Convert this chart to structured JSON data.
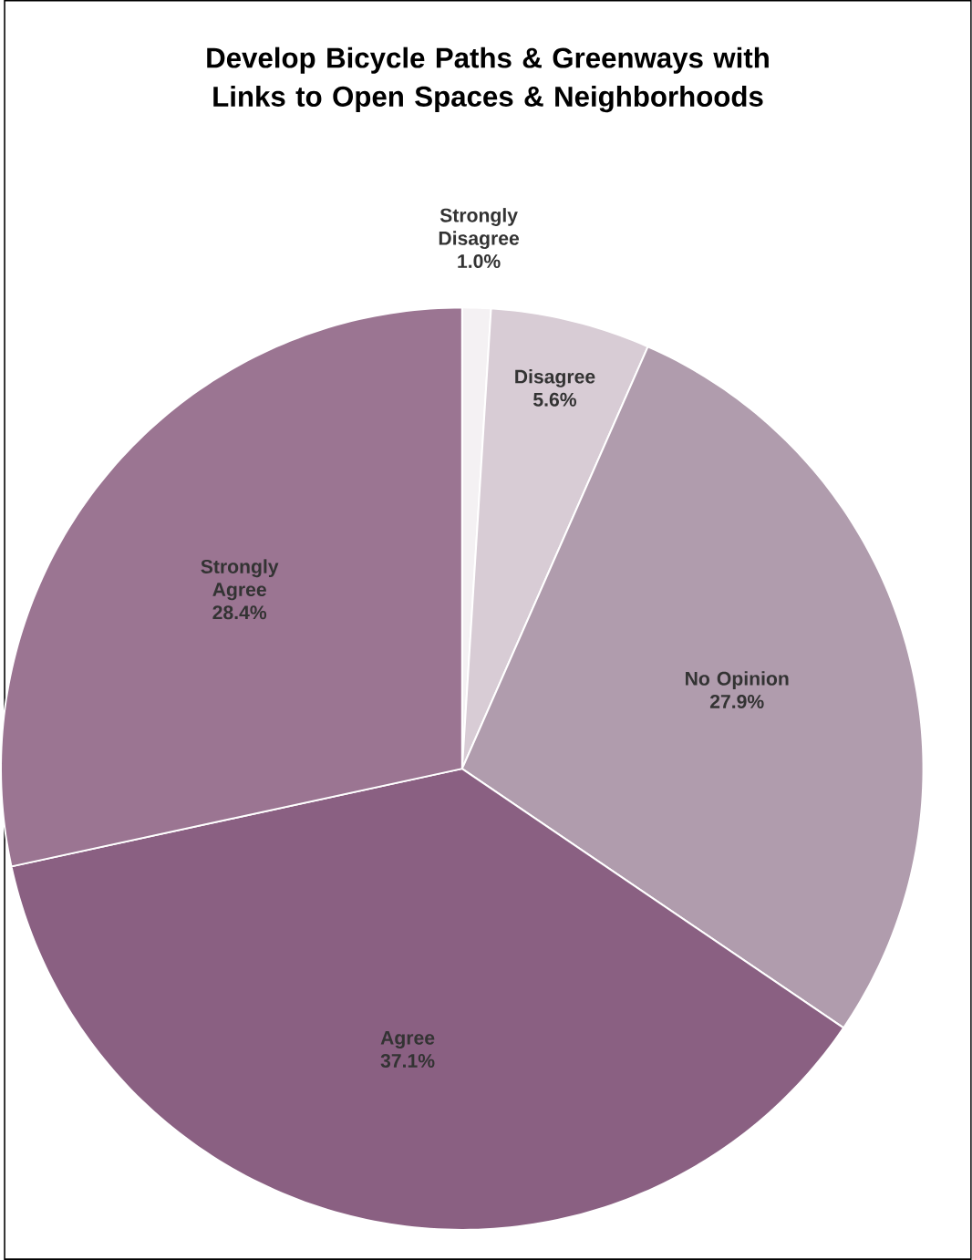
{
  "chart_data": {
    "type": "pie",
    "title": "Develop Bicycle Paths & Greenways with Links to Open Spaces & Neighborhoods",
    "categories": [
      "Strongly Disagree",
      "Disagree",
      "No Opinion",
      "Agree",
      "Strongly Agree"
    ],
    "values": [
      1.0,
      5.6,
      27.9,
      37.1,
      28.4
    ],
    "value_labels": [
      "1.0%",
      "5.6%",
      "27.9%",
      "37.1%",
      "28.4%"
    ],
    "colors": [
      "#f4f1f3",
      "#d8ccd5",
      "#b09cad",
      "#8a6082",
      "#9b7592"
    ]
  }
}
